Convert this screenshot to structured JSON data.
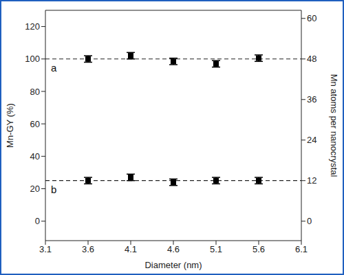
{
  "chart_data": {
    "type": "scatter",
    "x_label": "Diameter (nm)",
    "y_label": "Mn-GY (%)",
    "y2_label": "Mn atoms per nanocrystal",
    "x": [
      3.6,
      4.1,
      4.6,
      5.1,
      5.6
    ],
    "xlim": [
      3.1,
      6.1
    ],
    "xticks": [
      3.1,
      3.6,
      4.1,
      4.6,
      5.1,
      5.6,
      6.1
    ],
    "ylim": [
      -12,
      130
    ],
    "yticks": [
      0,
      20,
      40,
      60,
      80,
      100,
      120
    ],
    "y2lim": [
      -5.76,
      62.4
    ],
    "y2ticks": [
      0,
      12,
      24,
      36,
      48,
      60
    ],
    "grid": false,
    "series": [
      {
        "name": "a",
        "color": "#000000",
        "marker": "square",
        "values": [
          100,
          102,
          98.5,
          97,
          100.5
        ],
        "errors": [
          2,
          2,
          2,
          2,
          2
        ],
        "level": 100,
        "line_style": "dashed"
      },
      {
        "name": "b",
        "color": "#000000",
        "marker": "square",
        "values": [
          25,
          27,
          24,
          25,
          25
        ],
        "errors": [
          2,
          2,
          2,
          2,
          2
        ],
        "level": 25,
        "line_style": "dashed"
      }
    ]
  }
}
